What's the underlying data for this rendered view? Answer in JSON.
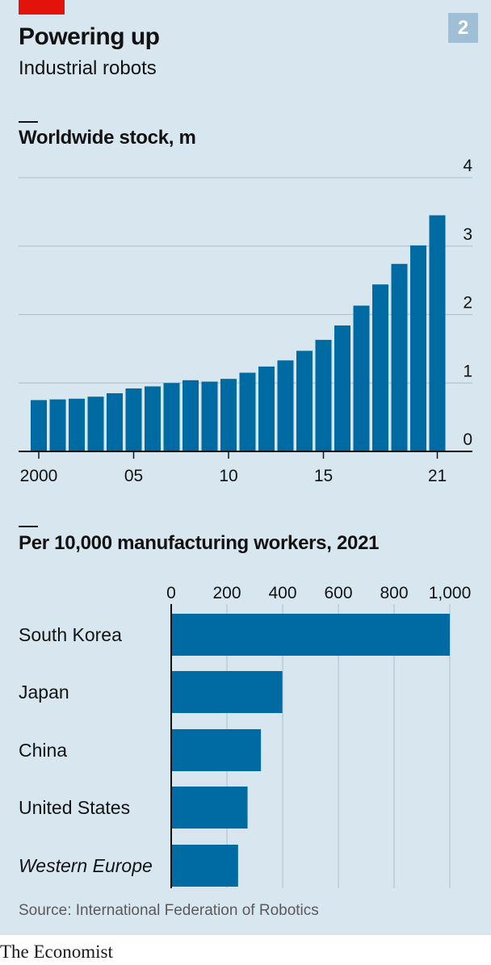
{
  "header": {
    "badge": "2",
    "title": "Powering up",
    "subtitle": "Industrial robots"
  },
  "colors": {
    "bar": "#006ba2",
    "panel": "#d8e6ef",
    "accent": "#e3120b",
    "badge": "#9fbfd6"
  },
  "chart_data": [
    {
      "type": "bar",
      "title": "Worldwide stock, m",
      "x": [
        2000,
        2001,
        2002,
        2003,
        2004,
        2005,
        2006,
        2007,
        2008,
        2009,
        2010,
        2011,
        2012,
        2013,
        2014,
        2015,
        2016,
        2017,
        2018,
        2019,
        2020,
        2021
      ],
      "values": [
        0.75,
        0.76,
        0.77,
        0.8,
        0.85,
        0.92,
        0.95,
        1.0,
        1.04,
        1.02,
        1.06,
        1.15,
        1.24,
        1.33,
        1.47,
        1.63,
        1.84,
        2.13,
        2.44,
        2.74,
        3.01,
        3.45
      ],
      "x_tick_labels": [
        "2000",
        "05",
        "10",
        "15",
        "21"
      ],
      "x_tick_years": [
        2000,
        2005,
        2010,
        2015,
        2021
      ],
      "y_ticks": [
        0,
        1,
        2,
        3,
        4
      ],
      "ylim": [
        0,
        4
      ],
      "y_axis_side": "right",
      "grid": true
    },
    {
      "type": "bar",
      "orientation": "horizontal",
      "title": "Per 10,000 manufacturing workers, 2021",
      "categories": [
        "South Korea",
        "Japan",
        "China",
        "United States",
        "Western Europe"
      ],
      "category_italic": [
        false,
        false,
        false,
        false,
        true
      ],
      "values": [
        1000,
        399,
        322,
        274,
        240
      ],
      "x_ticks": [
        0,
        200,
        400,
        600,
        800,
        1000
      ],
      "x_tick_labels": [
        "0",
        "200",
        "400",
        "600",
        "800",
        "1,000"
      ],
      "xlim": [
        0,
        1000
      ],
      "x_axis_side": "top",
      "grid": true
    }
  ],
  "footer": {
    "source": "Source: International Federation of Robotics",
    "logo": "The Economist"
  }
}
